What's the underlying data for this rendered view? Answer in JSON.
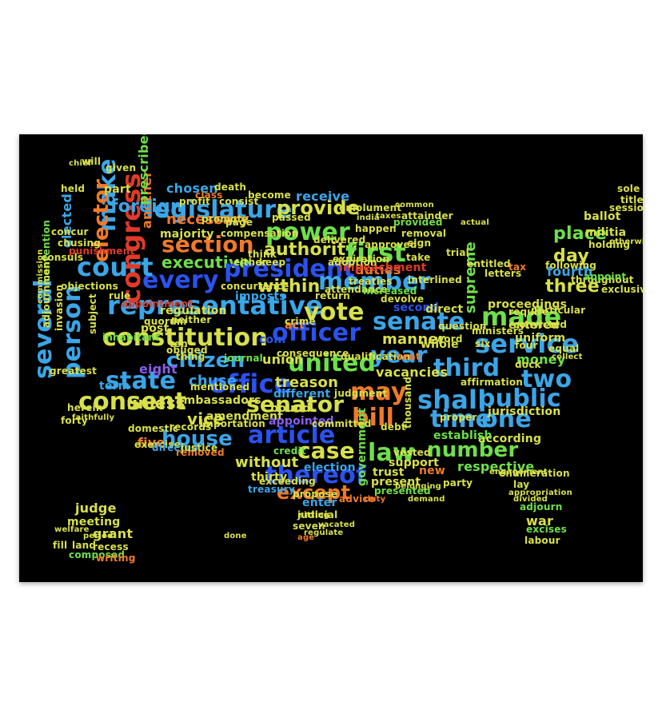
{
  "poster": {
    "background": "#000000",
    "palette": {
      "blue": "#2a52f0",
      "cyan": "#3aa6e8",
      "green": "#6ee04a",
      "yellow": "#d8e04a",
      "orange": "#f07a2a",
      "red": "#e03a2a",
      "purple": "#8a5cf0",
      "teal": "#2fd0c0"
    },
    "words": [
      {
        "t": "legislature"
      },
      {
        "t": "provide"
      },
      {
        "t": "power"
      },
      {
        "t": "authority"
      },
      {
        "t": "section"
      },
      {
        "t": "executive"
      },
      {
        "t": "every"
      },
      {
        "t": "president"
      },
      {
        "t": "first"
      },
      {
        "t": "member"
      },
      {
        "t": "within"
      },
      {
        "t": "representative"
      },
      {
        "t": "vote"
      },
      {
        "t": "officer"
      },
      {
        "t": "senate"
      },
      {
        "t": "made"
      },
      {
        "t": "constitution"
      },
      {
        "t": "citizen"
      },
      {
        "t": "united"
      },
      {
        "t": "year"
      },
      {
        "t": "third"
      },
      {
        "t": "service"
      },
      {
        "t": "state"
      },
      {
        "t": "office"
      },
      {
        "t": "may"
      },
      {
        "t": "two"
      },
      {
        "t": "consent"
      },
      {
        "t": "senator"
      },
      {
        "t": "bill"
      },
      {
        "t": "shall"
      },
      {
        "t": "public"
      },
      {
        "t": "house"
      },
      {
        "t": "article"
      },
      {
        "t": "time"
      },
      {
        "t": "one"
      },
      {
        "t": "case"
      },
      {
        "t": "law"
      },
      {
        "t": "number"
      },
      {
        "t": "thereof"
      },
      {
        "t": "except"
      },
      {
        "t": "several"
      },
      {
        "t": "person"
      },
      {
        "t": "court"
      },
      {
        "t": "make"
      },
      {
        "t": "elector"
      },
      {
        "t": "congress"
      },
      {
        "t": "place"
      },
      {
        "t": "day"
      },
      {
        "t": "three"
      },
      {
        "t": "necessary"
      },
      {
        "t": "majority"
      },
      {
        "t": "chosen"
      },
      {
        "t": "another"
      },
      {
        "t": "duties"
      },
      {
        "t": "impeachment"
      },
      {
        "t": "treaties"
      },
      {
        "t": "vacancies"
      },
      {
        "t": "proceedings"
      },
      {
        "t": "fourth"
      },
      {
        "t": "supreme"
      },
      {
        "t": "manner"
      },
      {
        "t": "treason"
      },
      {
        "t": "vice"
      },
      {
        "t": "unless"
      },
      {
        "t": "chuse"
      },
      {
        "t": "eight"
      },
      {
        "t": "five"
      },
      {
        "t": "without"
      },
      {
        "t": "thirty"
      },
      {
        "t": "treasury"
      },
      {
        "t": "judge"
      },
      {
        "t": "meeting"
      },
      {
        "t": "grant"
      },
      {
        "t": "land"
      },
      {
        "t": "fill"
      },
      {
        "t": "recess"
      },
      {
        "t": "ambassadors"
      },
      {
        "t": "amendment"
      },
      {
        "t": "regulation"
      },
      {
        "t": "imposts"
      },
      {
        "t": "appointment"
      },
      {
        "t": "foreign"
      },
      {
        "t": "prescribed"
      },
      {
        "t": "elected"
      },
      {
        "t": "consuls"
      },
      {
        "t": "convention"
      },
      {
        "t": "adjournment"
      },
      {
        "t": "invasion"
      },
      {
        "t": "inhabitant"
      },
      {
        "t": "subject"
      },
      {
        "t": "term"
      },
      {
        "t": "post"
      },
      {
        "t": "coin"
      },
      {
        "t": "act"
      },
      {
        "t": "union"
      },
      {
        "t": "journal"
      },
      {
        "t": "different"
      },
      {
        "t": "bound"
      },
      {
        "t": "appointed"
      },
      {
        "t": "credit"
      },
      {
        "t": "election"
      },
      {
        "t": "government"
      },
      {
        "t": "enter"
      },
      {
        "t": "judicial"
      },
      {
        "t": "seven"
      },
      {
        "t": "trust"
      },
      {
        "t": "present"
      },
      {
        "t": "presented"
      },
      {
        "t": "respective"
      },
      {
        "t": "according"
      },
      {
        "t": "establish"
      },
      {
        "t": "jurisdiction"
      },
      {
        "t": "uniform"
      },
      {
        "t": "money"
      },
      {
        "t": "militia"
      },
      {
        "t": "ballot"
      },
      {
        "t": "holding"
      },
      {
        "t": "war"
      },
      {
        "t": "adjourn"
      },
      {
        "t": "excises"
      },
      {
        "t": "labour"
      },
      {
        "t": "provided"
      },
      {
        "t": "receive"
      },
      {
        "t": "compensation"
      },
      {
        "t": "emolument"
      },
      {
        "t": "removal"
      },
      {
        "t": "attainder"
      },
      {
        "t": "trial"
      },
      {
        "t": "either"
      },
      {
        "t": "concurrence"
      },
      {
        "t": "second"
      },
      {
        "t": "direct"
      },
      {
        "t": "whole"
      },
      {
        "t": "word"
      },
      {
        "t": "six"
      },
      {
        "t": "ten"
      },
      {
        "t": "new"
      },
      {
        "t": "party"
      },
      {
        "t": "ministers"
      },
      {
        "t": "entered"
      },
      {
        "t": "affirmation"
      },
      {
        "t": "convicted"
      },
      {
        "t": "rule"
      },
      {
        "t": "herein"
      },
      {
        "t": "domestic"
      },
      {
        "t": "exercise"
      },
      {
        "t": "removed"
      },
      {
        "t": "directed"
      },
      {
        "t": "composed"
      },
      {
        "t": "writing"
      },
      {
        "t": "crime"
      },
      {
        "t": "return"
      },
      {
        "t": "qualification"
      },
      {
        "t": "seat"
      },
      {
        "t": "judgment"
      },
      {
        "t": "proper"
      },
      {
        "t": "thousand"
      },
      {
        "t": "debt"
      },
      {
        "t": "age"
      },
      {
        "t": "sitting"
      },
      {
        "t": "duty"
      },
      {
        "t": "chief"
      },
      {
        "t": "will"
      },
      {
        "t": "given"
      },
      {
        "t": "part"
      },
      {
        "t": "held"
      },
      {
        "t": "class"
      },
      {
        "t": "death"
      },
      {
        "t": "consist"
      },
      {
        "t": "become"
      },
      {
        "t": "passed"
      },
      {
        "t": "think"
      },
      {
        "t": "keep"
      },
      {
        "t": "page"
      },
      {
        "t": "promote"
      },
      {
        "t": "profit"
      },
      {
        "t": "sole"
      },
      {
        "t": "title"
      },
      {
        "t": "session"
      },
      {
        "t": "following"
      },
      {
        "t": "throughout"
      },
      {
        "t": "equal"
      },
      {
        "t": "four"
      },
      {
        "t": "lay"
      },
      {
        "t": "enumeration"
      },
      {
        "t": "appropriation"
      },
      {
        "t": "divided"
      },
      {
        "t": "punishment"
      },
      {
        "t": "objections"
      },
      {
        "t": "commission"
      },
      {
        "t": "quorum"
      },
      {
        "t": "greatest"
      },
      {
        "t": "welfare"
      },
      {
        "t": "period"
      },
      {
        "t": "interlined"
      },
      {
        "t": "letters"
      },
      {
        "t": "tax"
      },
      {
        "t": "entitled"
      },
      {
        "t": "take"
      },
      {
        "t": "sign"
      },
      {
        "t": "approved"
      },
      {
        "t": "happen"
      },
      {
        "t": "actual"
      },
      {
        "t": "common"
      },
      {
        "t": "taxes"
      },
      {
        "t": "india"
      },
      {
        "t": "support"
      },
      {
        "t": "vested"
      },
      {
        "t": "advice"
      },
      {
        "t": "exceeding"
      },
      {
        "t": "propose"
      },
      {
        "t": "committed"
      },
      {
        "t": "attendance"
      },
      {
        "t": "devolve"
      },
      {
        "t": "neither"
      },
      {
        "t": "consequence"
      },
      {
        "t": "obliged"
      },
      {
        "t": "thing"
      },
      {
        "t": "justice"
      },
      {
        "t": "forty"
      },
      {
        "t": "records"
      },
      {
        "t": "faithfully"
      },
      {
        "t": "belonging"
      },
      {
        "t": "demand"
      },
      {
        "t": "regulate"
      },
      {
        "t": "vacated"
      },
      {
        "t": "done"
      },
      {
        "t": "require"
      },
      {
        "t": "particular"
      },
      {
        "t": "collect"
      },
      {
        "t": "dock"
      },
      {
        "t": "exclusive"
      },
      {
        "t": "appoint"
      },
      {
        "t": "otherwise"
      },
      {
        "t": "question"
      },
      {
        "t": "engagement"
      },
      {
        "t": "increased"
      },
      {
        "t": "expiration"
      },
      {
        "t": "delivered"
      },
      {
        "t": "adoption"
      },
      {
        "t": "chusing"
      },
      {
        "t": "concur"
      },
      {
        "t": "mentioned"
      },
      {
        "t": "importation"
      }
    ]
  }
}
